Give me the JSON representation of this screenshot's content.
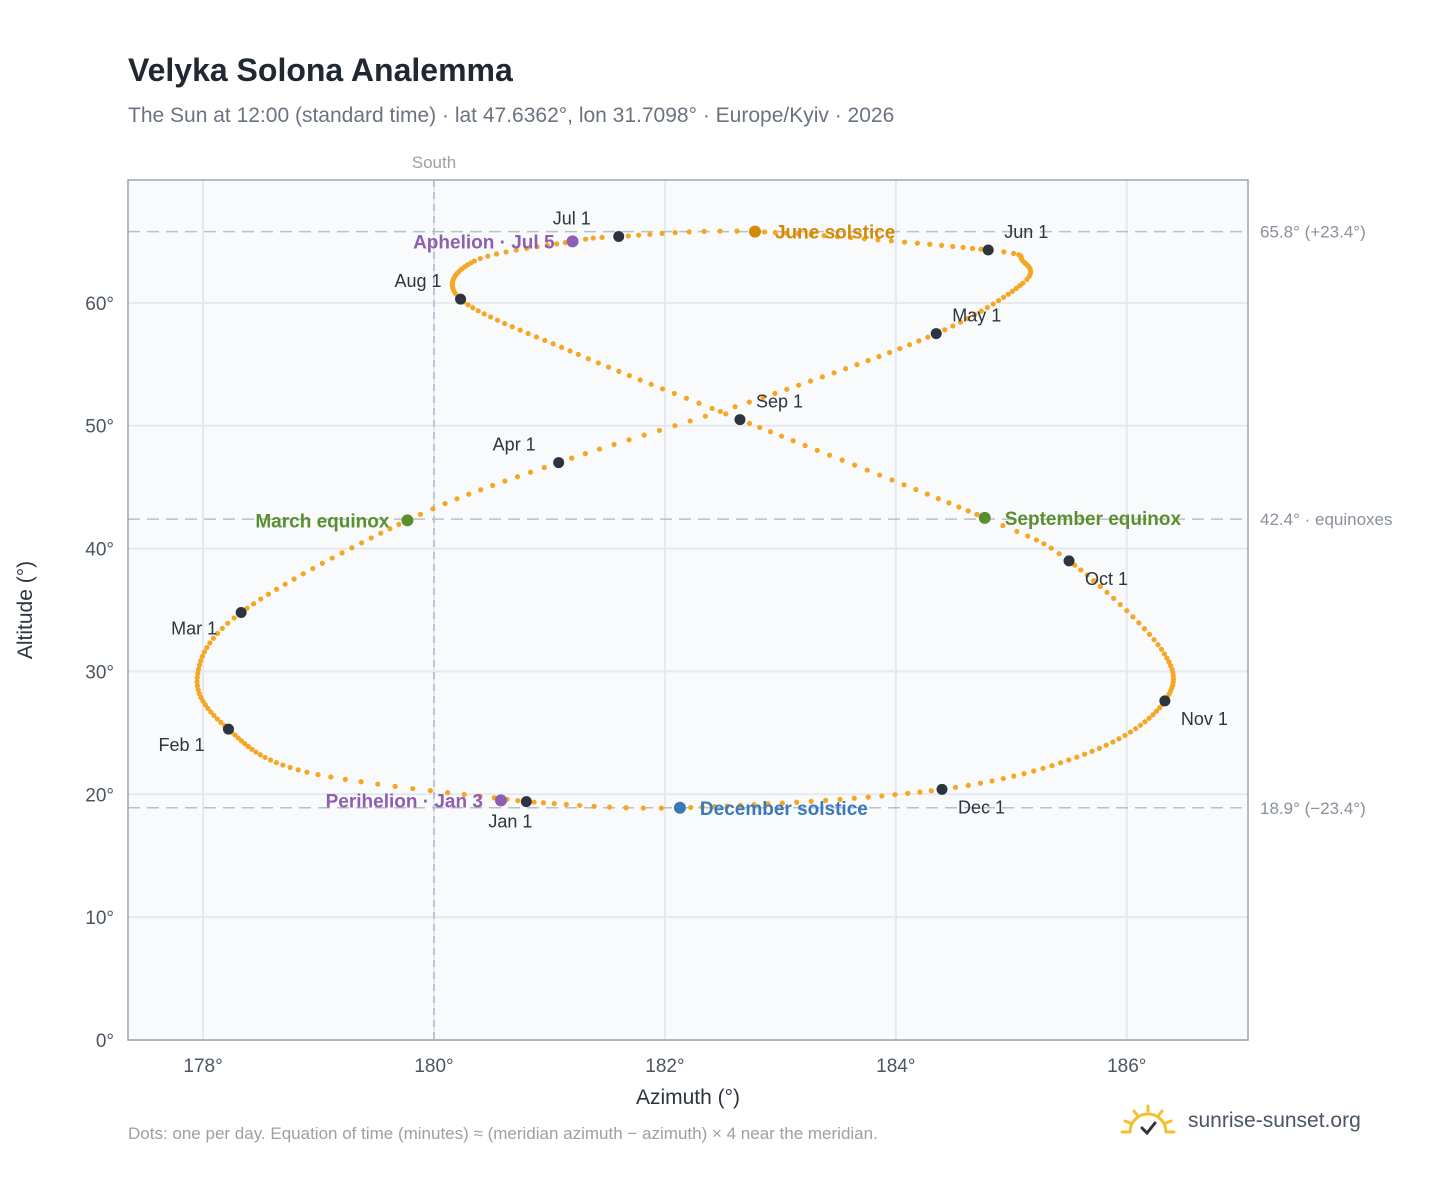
{
  "header": {
    "title": "Velyka Solona Analemma",
    "subtitle": "The Sun at 12:00 (standard time) · lat 47.6362°, lon 31.7098° · Europe/Kyiv · 2026"
  },
  "footer": {
    "note": "Dots: one per day. Equation of time (minutes) ≈ (meridian azimuth − azimuth) × 4 near the meridian.",
    "brand": "sunrise-sunset.org"
  },
  "colors": {
    "path": "#f5a623",
    "month_marker": "#2d3440",
    "equinox": "#5a8f2e",
    "june_solstice": "#d48a06",
    "december_solstice": "#3a78b8",
    "apsis": "#8e5fb0",
    "grid": "#e5e9ef",
    "ref_line": "#b8c0c8",
    "plot_bg": "#f8fafc",
    "frame": "#9aa5b3",
    "brand_icon": "#f2c12e"
  },
  "chart_data": {
    "type": "scatter",
    "xlabel": "Azimuth (°)",
    "ylabel": "Altitude (°)",
    "xlim": [
      177.35,
      187.05
    ],
    "ylim": [
      0,
      70
    ],
    "x_ticks": [
      {
        "value": 178,
        "label": "178°"
      },
      {
        "value": 180,
        "label": "180°"
      },
      {
        "value": 182,
        "label": "182°"
      },
      {
        "value": 184,
        "label": "184°"
      },
      {
        "value": 186,
        "label": "186°"
      }
    ],
    "y_ticks": [
      {
        "value": 0,
        "label": "0°"
      },
      {
        "value": 10,
        "label": "10°"
      },
      {
        "value": 20,
        "label": "20°"
      },
      {
        "value": 30,
        "label": "30°"
      },
      {
        "value": 40,
        "label": "40°"
      },
      {
        "value": 50,
        "label": "50°"
      },
      {
        "value": 60,
        "label": "60°"
      }
    ],
    "grid": true,
    "meridian": {
      "azimuth": 180,
      "label": "South"
    },
    "reference_lines": [
      {
        "altitude": 65.8,
        "label": "65.8° (+23.4°)"
      },
      {
        "altitude": 42.4,
        "label": "42.4° · equinoxes"
      },
      {
        "altitude": 18.9,
        "label": "18.9° (−23.4°)"
      }
    ],
    "analemma_path_note": "one dot per day, 365 days",
    "analemma_keypoints": [
      {
        "day": 1,
        "az": 180.8,
        "alt": 19.4
      },
      {
        "day": 16,
        "az": 178.9,
        "alt": 21.8
      },
      {
        "day": 32,
        "az": 178.22,
        "alt": 25.3
      },
      {
        "day": 46,
        "az": 177.95,
        "alt": 29.5
      },
      {
        "day": 60,
        "az": 178.33,
        "alt": 34.8
      },
      {
        "day": 79,
        "az": 179.77,
        "alt": 42.3
      },
      {
        "day": 91,
        "az": 181.08,
        "alt": 47.0
      },
      {
        "day": 105,
        "az": 182.85,
        "alt": 52.3
      },
      {
        "day": 121,
        "az": 184.35,
        "alt": 57.5
      },
      {
        "day": 136,
        "az": 185.1,
        "alt": 61.6
      },
      {
        "day": 145,
        "az": 185.1,
        "alt": 63.4
      },
      {
        "day": 152,
        "az": 184.8,
        "alt": 64.3
      },
      {
        "day": 172,
        "az": 182.78,
        "alt": 65.8
      },
      {
        "day": 182,
        "az": 181.6,
        "alt": 65.4
      },
      {
        "day": 186,
        "az": 181.2,
        "alt": 65.0
      },
      {
        "day": 197,
        "az": 180.35,
        "alt": 63.4
      },
      {
        "day": 213,
        "az": 180.23,
        "alt": 60.3
      },
      {
        "day": 230,
        "az": 181.25,
        "alt": 55.8
      },
      {
        "day": 244,
        "az": 182.65,
        "alt": 50.5
      },
      {
        "day": 266,
        "az": 184.77,
        "alt": 42.5
      },
      {
        "day": 274,
        "az": 185.5,
        "alt": 39.0
      },
      {
        "day": 290,
        "az": 186.3,
        "alt": 31.8
      },
      {
        "day": 305,
        "az": 186.33,
        "alt": 27.6
      },
      {
        "day": 320,
        "az": 185.7,
        "alt": 23.5
      },
      {
        "day": 335,
        "az": 184.4,
        "alt": 20.4
      },
      {
        "day": 355,
        "az": 182.13,
        "alt": 18.9
      },
      {
        "day": 366,
        "az": 180.8,
        "alt": 19.4
      }
    ],
    "month_markers": [
      {
        "label": "Jan 1",
        "az": 180.8,
        "alt": 19.4,
        "anchor": "below"
      },
      {
        "label": "Feb 1",
        "az": 178.22,
        "alt": 25.3,
        "anchor": "below-left"
      },
      {
        "label": "Mar 1",
        "az": 178.33,
        "alt": 34.8,
        "anchor": "below-left"
      },
      {
        "label": "Apr 1",
        "az": 181.08,
        "alt": 47.0,
        "anchor": "above-left"
      },
      {
        "label": "May 1",
        "az": 184.35,
        "alt": 57.5,
        "anchor": "above-right"
      },
      {
        "label": "Jun 1",
        "az": 184.8,
        "alt": 64.3,
        "anchor": "above-right"
      },
      {
        "label": "Jul 1",
        "az": 181.6,
        "alt": 65.4,
        "anchor": "above-left"
      },
      {
        "label": "Aug 1",
        "az": 180.23,
        "alt": 60.3,
        "anchor": "above-left"
      },
      {
        "label": "Sep 1",
        "az": 182.65,
        "alt": 50.5,
        "anchor": "above-right"
      },
      {
        "label": "Oct 1",
        "az": 185.5,
        "alt": 39.0,
        "anchor": "below-right"
      },
      {
        "label": "Nov 1",
        "az": 186.33,
        "alt": 27.6,
        "anchor": "below-right"
      },
      {
        "label": "Dec 1",
        "az": 184.4,
        "alt": 20.4,
        "anchor": "below-right"
      }
    ],
    "events": [
      {
        "label": "March equinox",
        "az": 179.77,
        "alt": 42.3,
        "color_key": "equinox",
        "side": "left"
      },
      {
        "label": "September equinox",
        "az": 184.77,
        "alt": 42.5,
        "color_key": "equinox",
        "side": "right"
      },
      {
        "label": "June solstice",
        "az": 182.78,
        "alt": 65.8,
        "color_key": "june_solstice",
        "side": "right"
      },
      {
        "label": "December solstice",
        "az": 182.13,
        "alt": 18.9,
        "color_key": "december_solstice",
        "side": "right"
      },
      {
        "label": "Aphelion · Jul 5",
        "az": 181.2,
        "alt": 65.0,
        "color_key": "apsis",
        "side": "left"
      },
      {
        "label": "Perihelion · Jan 3",
        "az": 180.58,
        "alt": 19.5,
        "color_key": "apsis",
        "side": "left"
      }
    ]
  }
}
